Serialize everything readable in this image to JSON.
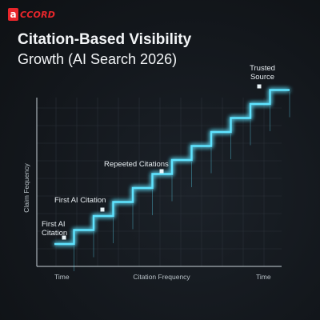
{
  "brand": {
    "logo_letter": "a",
    "logo_text": "CCORD",
    "color": "#e8262b"
  },
  "header": {
    "title_line1": "Citation-Based Visibility",
    "title_line2": "Growth (AI Search 2026)"
  },
  "chart_data": {
    "type": "line",
    "step": true,
    "ylabel": "Claim Fequency",
    "x_tick_left": "Time",
    "x_tick_center": "Citation Frequency",
    "x_tick_right": "Time",
    "grid": true,
    "line_color": "#5fe3ff",
    "steps": [
      1,
      2,
      3,
      4,
      5,
      6,
      7,
      8,
      9,
      10,
      11,
      12
    ],
    "levels": [
      1,
      2,
      3,
      4,
      5,
      6,
      7,
      8,
      9,
      10,
      11,
      12
    ],
    "annotations": [
      {
        "text_lines": [
          "First AI",
          "Citation"
        ],
        "step": 1
      },
      {
        "text_lines": [
          "First AI Citation"
        ],
        "step": 3
      },
      {
        "text_lines": [
          "Repeeted Citations"
        ],
        "step": 6
      },
      {
        "text_lines": [
          "Trusted",
          "Source"
        ],
        "step": 12
      }
    ]
  }
}
